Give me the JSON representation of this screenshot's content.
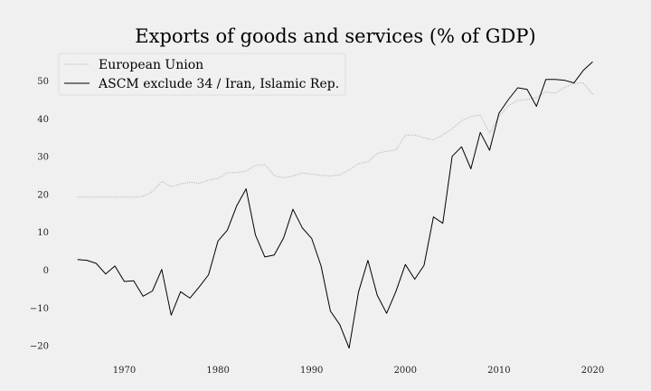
{
  "chart_data": {
    "type": "line",
    "title": "Exports of goods and services (% of GDP)",
    "xlabel": "",
    "ylabel": "",
    "xlim": [
      1962,
      2023
    ],
    "ylim": [
      -25,
      57
    ],
    "x_ticks": [
      1970,
      1980,
      1990,
      2000,
      2010,
      2020
    ],
    "y_ticks": [
      -20,
      -10,
      0,
      10,
      20,
      30,
      40,
      50
    ],
    "y_tick_labels": [
      "−20",
      "−10",
      "0",
      "10",
      "20",
      "30",
      "40",
      "50"
    ],
    "grid": false,
    "legend_position": "top-left",
    "x": [
      1965,
      1966,
      1967,
      1968,
      1969,
      1970,
      1971,
      1972,
      1973,
      1974,
      1975,
      1976,
      1977,
      1978,
      1979,
      1980,
      1981,
      1982,
      1983,
      1984,
      1985,
      1986,
      1987,
      1988,
      1989,
      1990,
      1991,
      1992,
      1993,
      1994,
      1995,
      1996,
      1997,
      1998,
      1999,
      2000,
      2001,
      2002,
      2003,
      2004,
      2005,
      2006,
      2007,
      2008,
      2009,
      2010,
      2011,
      2012,
      2013,
      2014,
      2015,
      2016,
      2017,
      2018,
      2019,
      2020
    ],
    "series": [
      {
        "name": "European Union",
        "color": "#aaaaaa",
        "style": "dotted",
        "values": [
          19.3,
          19.3,
          19.3,
          19.3,
          19.3,
          19.3,
          19.3,
          19.5,
          20.8,
          23.5,
          22.0,
          22.8,
          23.2,
          23.0,
          23.8,
          24.2,
          25.8,
          25.8,
          26.2,
          27.7,
          27.9,
          25.0,
          24.4,
          24.9,
          25.7,
          25.4,
          25.1,
          24.9,
          25.2,
          26.5,
          28.2,
          28.6,
          30.9,
          31.4,
          31.8,
          35.7,
          35.7,
          35.0,
          34.4,
          35.8,
          37.4,
          39.5,
          40.6,
          41.0,
          36.2,
          40.7,
          43.5,
          44.9,
          45.1,
          45.6,
          47.1,
          46.8,
          48.3,
          49.4,
          49.5,
          46.5
        ]
      },
      {
        "name": "ASCM exclude 34 / Iran, Islamic Rep.",
        "color": "#000000",
        "style": "solid",
        "values": [
          2.8,
          2.6,
          1.8,
          -1.0,
          1.1,
          -3.0,
          -2.8,
          -6.9,
          -5.5,
          0.2,
          -11.9,
          -5.7,
          -7.4,
          -4.4,
          -1.2,
          7.7,
          10.6,
          17.0,
          21.5,
          9.3,
          3.5,
          4.0,
          8.5,
          16.1,
          11.2,
          8.4,
          1.1,
          -10.8,
          -14.4,
          -20.6,
          -5.8,
          2.6,
          -6.6,
          -11.4,
          -5.6,
          1.5,
          -2.4,
          1.3,
          14.1,
          12.4,
          30.1,
          32.6,
          26.8,
          36.4,
          31.7,
          41.5,
          45.1,
          48.2,
          47.8,
          43.3,
          50.4,
          50.4,
          50.2,
          49.5,
          52.8,
          55.1
        ]
      }
    ]
  }
}
